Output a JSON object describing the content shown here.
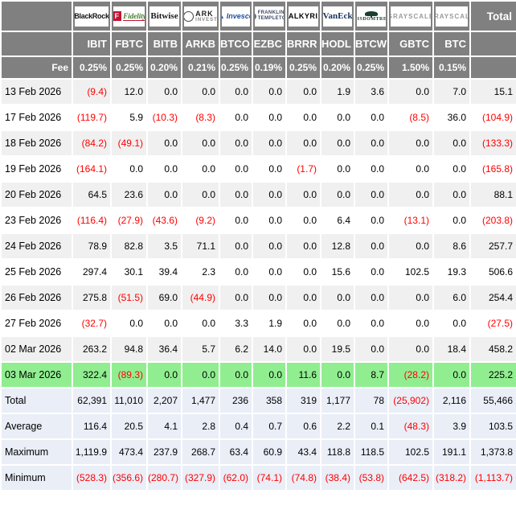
{
  "colors": {
    "header_bg": "#808080",
    "stripe_row_bg": "#f0f0f0",
    "highlight_row_bg": "#90ee90",
    "summary_row_bg": "#e9eef7",
    "negative_text": "#ff0000",
    "positive_text": "#000000",
    "header_text": "#ffffff"
  },
  "chart_data": {
    "type": "table",
    "total_column_label": "Total",
    "fee_label": "Fee",
    "tickers": [
      "IBIT",
      "FBTC",
      "BITB",
      "ARKB",
      "BTCO",
      "EZBC",
      "BRRR",
      "HODL",
      "BTCW",
      "GBTC",
      "BTC"
    ],
    "providers": [
      "BlackRock",
      "Fidelity",
      "Bitwise",
      "ARK Invest",
      "Invesco",
      "Franklin Templeton",
      "Valkyrie",
      "VanEck",
      "WisdomTree",
      "Grayscale",
      "Grayscale"
    ],
    "logo_styles": [
      "blackrock",
      "fidelity",
      "bitwise",
      "ark",
      "invesco",
      "franklin",
      "valkyrie",
      "vaneck",
      "wisdomtree",
      "grayscale",
      "grayscale"
    ],
    "fees": [
      "0.25%",
      "0.25%",
      "0.20%",
      "0.21%",
      "0.25%",
      "0.19%",
      "0.25%",
      "0.20%",
      "0.25%",
      "1.50%",
      "0.15%"
    ],
    "rows": [
      {
        "date": "13 Feb 2026",
        "values": [
          "(9.4)",
          "12.0",
          "0.0",
          "0.0",
          "0.0",
          "0.0",
          "0.0",
          "1.9",
          "3.6",
          "0.0",
          "7.0"
        ],
        "total": "15.1",
        "highlight": false
      },
      {
        "date": "17 Feb 2026",
        "values": [
          "(119.7)",
          "5.9",
          "(10.3)",
          "(8.3)",
          "0.0",
          "0.0",
          "0.0",
          "0.0",
          "0.0",
          "(8.5)",
          "36.0"
        ],
        "total": "(104.9)",
        "highlight": false
      },
      {
        "date": "18 Feb 2026",
        "values": [
          "(84.2)",
          "(49.1)",
          "0.0",
          "0.0",
          "0.0",
          "0.0",
          "0.0",
          "0.0",
          "0.0",
          "0.0",
          "0.0"
        ],
        "total": "(133.3)",
        "highlight": false
      },
      {
        "date": "19 Feb 2026",
        "values": [
          "(164.1)",
          "0.0",
          "0.0",
          "0.0",
          "0.0",
          "0.0",
          "(1.7)",
          "0.0",
          "0.0",
          "0.0",
          "0.0"
        ],
        "total": "(165.8)",
        "highlight": false
      },
      {
        "date": "20 Feb 2026",
        "values": [
          "64.5",
          "23.6",
          "0.0",
          "0.0",
          "0.0",
          "0.0",
          "0.0",
          "0.0",
          "0.0",
          "0.0",
          "0.0"
        ],
        "total": "88.1",
        "highlight": false
      },
      {
        "date": "23 Feb 2026",
        "values": [
          "(116.4)",
          "(27.9)",
          "(43.6)",
          "(9.2)",
          "0.0",
          "0.0",
          "0.0",
          "6.4",
          "0.0",
          "(13.1)",
          "0.0"
        ],
        "total": "(203.8)",
        "highlight": false
      },
      {
        "date": "24 Feb 2026",
        "values": [
          "78.9",
          "82.8",
          "3.5",
          "71.1",
          "0.0",
          "0.0",
          "0.0",
          "12.8",
          "0.0",
          "0.0",
          "8.6"
        ],
        "total": "257.7",
        "highlight": false
      },
      {
        "date": "25 Feb 2026",
        "values": [
          "297.4",
          "30.1",
          "39.4",
          "2.3",
          "0.0",
          "0.0",
          "0.0",
          "15.6",
          "0.0",
          "102.5",
          "19.3"
        ],
        "total": "506.6",
        "highlight": false
      },
      {
        "date": "26 Feb 2026",
        "values": [
          "275.8",
          "(51.5)",
          "69.0",
          "(44.9)",
          "0.0",
          "0.0",
          "0.0",
          "0.0",
          "0.0",
          "0.0",
          "6.0"
        ],
        "total": "254.4",
        "highlight": false
      },
      {
        "date": "27 Feb 2026",
        "values": [
          "(32.7)",
          "0.0",
          "0.0",
          "0.0",
          "3.3",
          "1.9",
          "0.0",
          "0.0",
          "0.0",
          "0.0",
          "0.0"
        ],
        "total": "(27.5)",
        "highlight": false
      },
      {
        "date": "02 Mar 2026",
        "values": [
          "263.2",
          "94.8",
          "36.4",
          "5.7",
          "6.2",
          "14.0",
          "0.0",
          "19.5",
          "0.0",
          "0.0",
          "18.4"
        ],
        "total": "458.2",
        "highlight": false
      },
      {
        "date": "03 Mar 2026",
        "values": [
          "322.4",
          "(89.3)",
          "0.0",
          "0.0",
          "0.0",
          "0.0",
          "11.6",
          "0.0",
          "8.7",
          "(28.2)",
          "0.0"
        ],
        "total": "225.2",
        "highlight": true
      }
    ],
    "summary": [
      {
        "label": "Total",
        "values": [
          "62,391",
          "11,010",
          "2,207",
          "1,477",
          "236",
          "358",
          "319",
          "1,177",
          "78",
          "(25,902)",
          "2,116"
        ],
        "total": "55,466"
      },
      {
        "label": "Average",
        "values": [
          "116.4",
          "20.5",
          "4.1",
          "2.8",
          "0.4",
          "0.7",
          "0.6",
          "2.2",
          "0.1",
          "(48.3)",
          "3.9"
        ],
        "total": "103.5"
      },
      {
        "label": "Maximum",
        "values": [
          "1,119.9",
          "473.4",
          "237.9",
          "268.7",
          "63.4",
          "60.9",
          "43.4",
          "118.8",
          "118.5",
          "102.5",
          "191.1"
        ],
        "total": "1,373.8"
      },
      {
        "label": "Minimum",
        "values": [
          "(528.3)",
          "(356.6)",
          "(280.7)",
          "(327.9)",
          "(62.0)",
          "(74.1)",
          "(74.8)",
          "(38.4)",
          "(53.8)",
          "(642.5)",
          "(318.2)"
        ],
        "total": "(1,113.7)"
      }
    ]
  }
}
